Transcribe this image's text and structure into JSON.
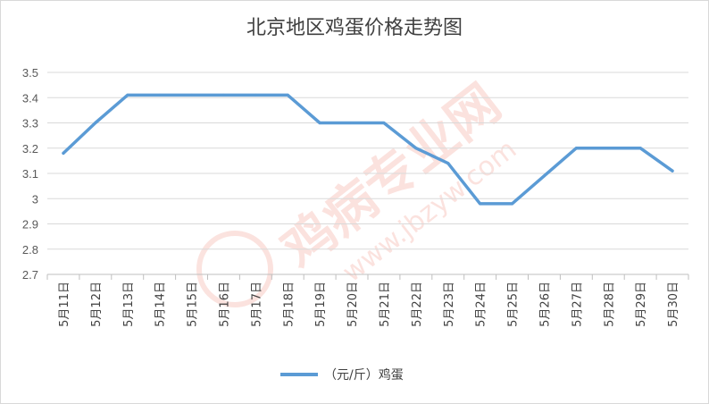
{
  "watermark": {
    "site_name": "鸡病专业网",
    "url": "www.jbzyw.com",
    "color": "#e8503a"
  },
  "chart_data": {
    "type": "line",
    "title": "北京地区鸡蛋价格走势图",
    "xlabel": "",
    "ylabel": "",
    "ylim": [
      2.7,
      3.5
    ],
    "yticks": [
      "3.5",
      "3.4",
      "3.3",
      "3.2",
      "3.1",
      "3",
      "2.9",
      "2.8",
      "2.7"
    ],
    "grid": true,
    "legend_position": "bottom",
    "categories": [
      "5月11日",
      "5月12日",
      "5月13日",
      "5月14日",
      "5月15日",
      "5月16日",
      "5月17日",
      "5月18日",
      "5月19日",
      "5月20日",
      "5月21日",
      "5月22日",
      "5月23日",
      "5月24日",
      "5月25日",
      "5月26日",
      "5月27日",
      "5月28日",
      "5月29日",
      "5月30日"
    ],
    "series": [
      {
        "name": "（元/斤）鸡蛋",
        "color": "#5b9bd5",
        "values": [
          3.18,
          3.3,
          3.41,
          3.41,
          3.41,
          3.41,
          3.41,
          3.41,
          3.3,
          3.3,
          3.3,
          3.2,
          3.14,
          2.98,
          2.98,
          3.09,
          3.2,
          3.2,
          3.2,
          3.11
        ]
      }
    ]
  }
}
